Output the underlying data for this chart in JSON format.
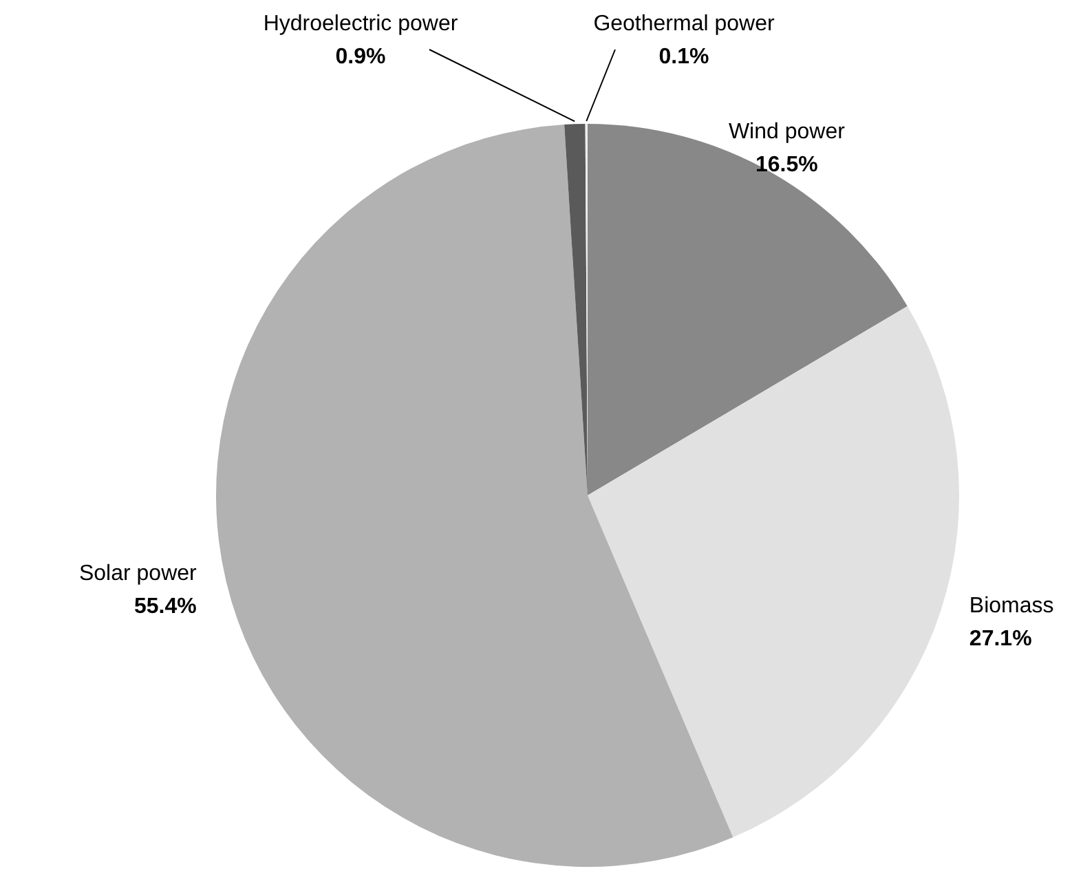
{
  "chart_data": {
    "type": "pie",
    "categories": [
      "Wind power",
      "Biomass",
      "Solar power",
      "Hydroelectric power",
      "Geothermal power"
    ],
    "values": [
      16.5,
      27.1,
      55.4,
      0.9,
      0.1
    ],
    "value_labels": [
      "16.5%",
      "27.1%",
      "55.4%",
      "0.9%",
      "0.1%"
    ],
    "colors": [
      "#888888",
      "#e1e1e1",
      "#b2b2b2",
      "#5a5a5a",
      "#eeeeee"
    ]
  }
}
